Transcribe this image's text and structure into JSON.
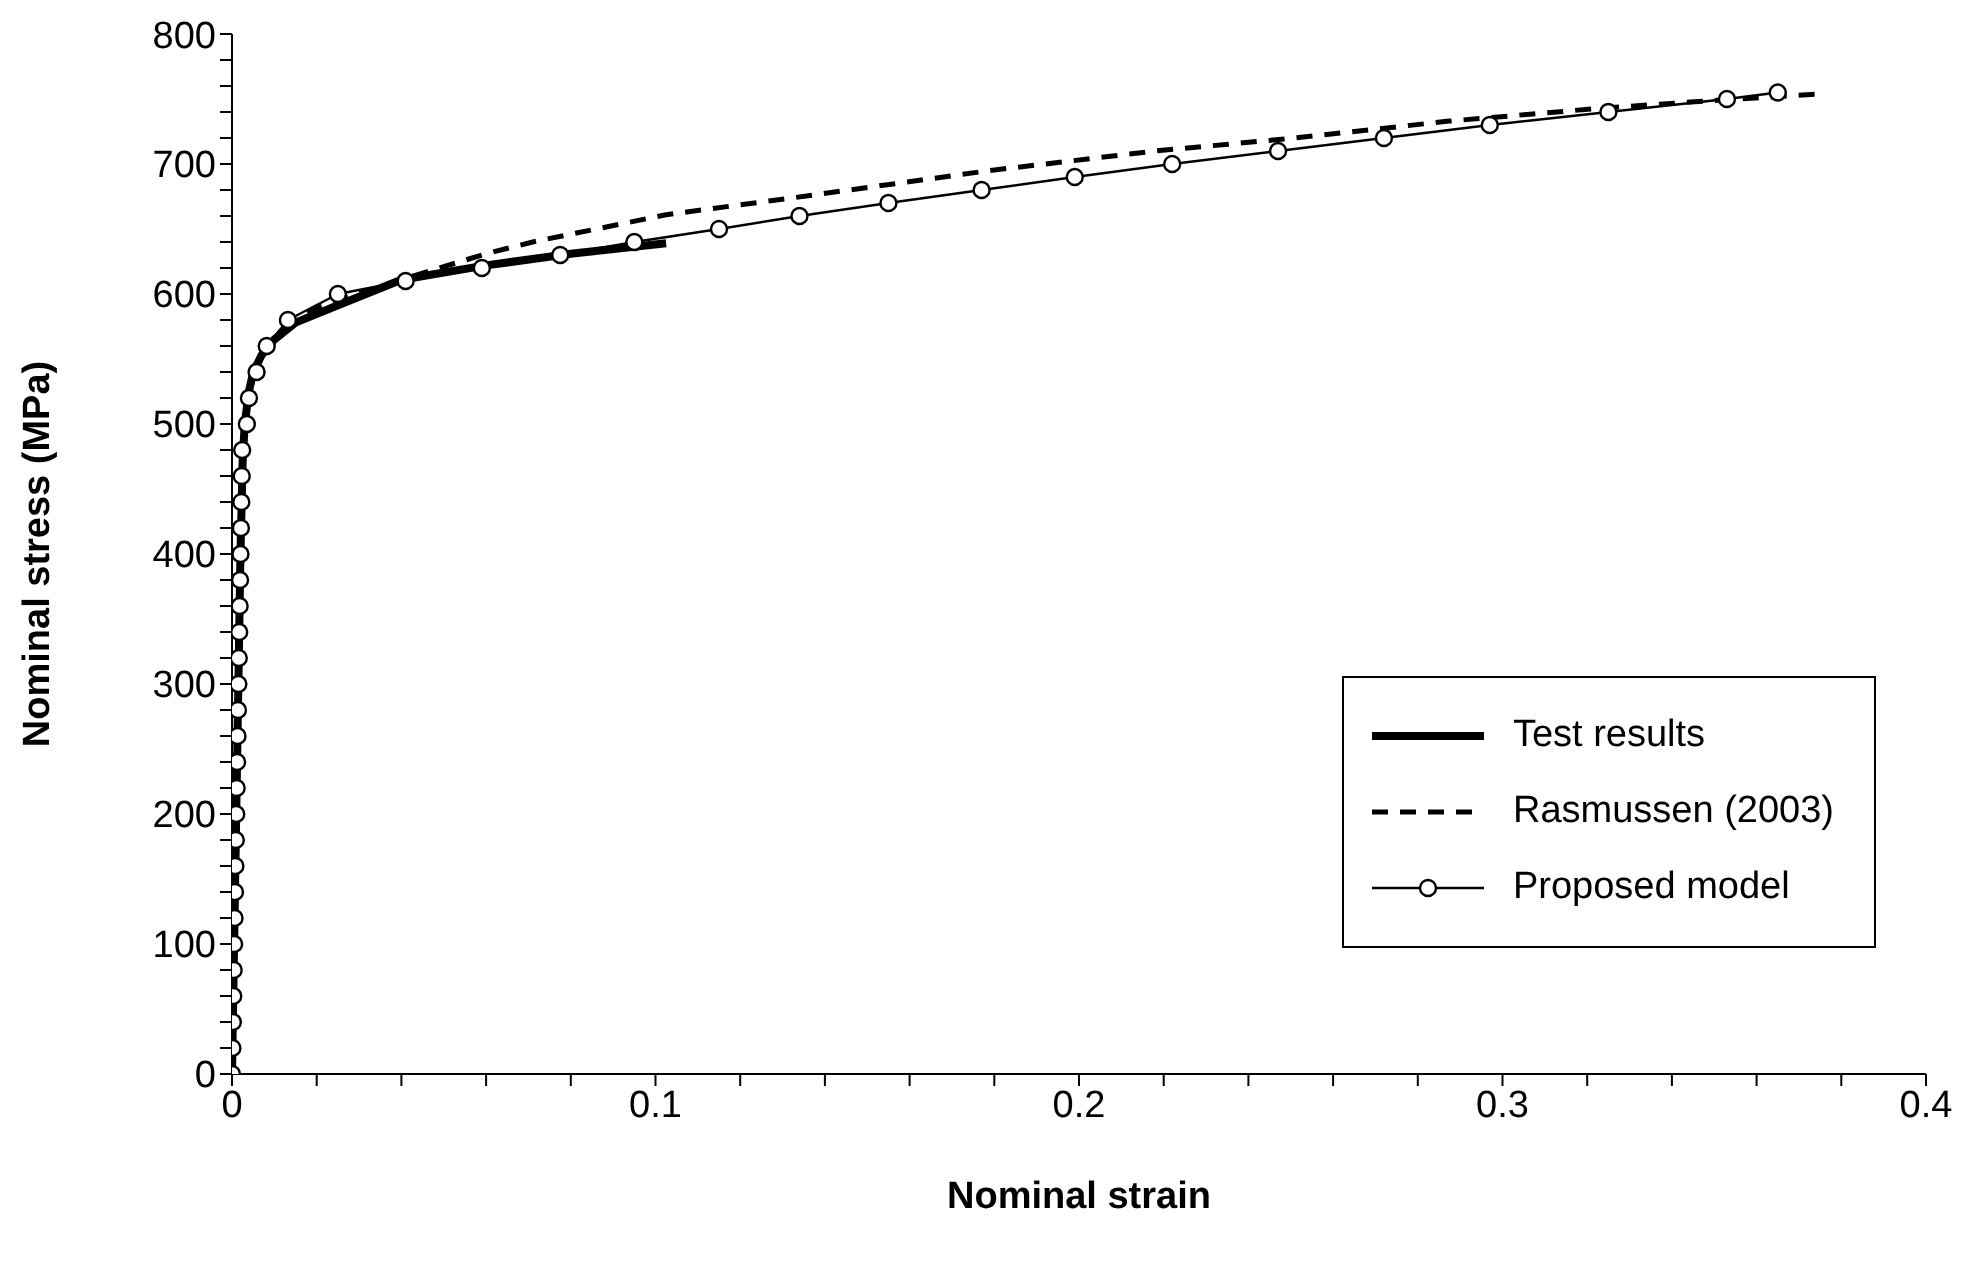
{
  "chart_data": {
    "type": "line",
    "xlabel": "Nominal strain",
    "ylabel": "Nominal stress (MPa)",
    "xlim": [
      0,
      0.4
    ],
    "ylim": [
      0,
      800
    ],
    "xticks": [
      0,
      {
        "value": 0.02,
        "label": null
      },
      {
        "value": 0.04,
        "label": null
      },
      {
        "value": 0.06,
        "label": null
      },
      {
        "value": 0.08,
        "label": null
      },
      0.1,
      {
        "value": 0.12,
        "label": null
      },
      {
        "value": 0.14,
        "label": null
      },
      {
        "value": 0.16,
        "label": null
      },
      {
        "value": 0.18,
        "label": null
      },
      0.2,
      {
        "value": 0.22,
        "label": null
      },
      {
        "value": 0.24,
        "label": null
      },
      {
        "value": 0.26,
        "label": null
      },
      {
        "value": 0.28,
        "label": null
      },
      0.3,
      {
        "value": 0.32,
        "label": null
      },
      {
        "value": 0.34,
        "label": null
      },
      {
        "value": 0.36,
        "label": null
      },
      {
        "value": 0.38,
        "label": null
      },
      0.4
    ],
    "yticks": [
      0,
      {
        "value": 20,
        "label": null
      },
      {
        "value": 40,
        "label": null
      },
      {
        "value": 60,
        "label": null
      },
      {
        "value": 80,
        "label": null
      },
      100,
      {
        "value": 120,
        "label": null
      },
      {
        "value": 140,
        "label": null
      },
      {
        "value": 160,
        "label": null
      },
      {
        "value": 180,
        "label": null
      },
      200,
      {
        "value": 220,
        "label": null
      },
      {
        "value": 240,
        "label": null
      },
      {
        "value": 260,
        "label": null
      },
      {
        "value": 280,
        "label": null
      },
      300,
      {
        "value": 320,
        "label": null
      },
      {
        "value": 340,
        "label": null
      },
      {
        "value": 360,
        "label": null
      },
      {
        "value": 380,
        "label": null
      },
      400,
      {
        "value": 420,
        "label": null
      },
      {
        "value": 440,
        "label": null
      },
      {
        "value": 460,
        "label": null
      },
      {
        "value": 480,
        "label": null
      },
      500,
      {
        "value": 520,
        "label": null
      },
      {
        "value": 540,
        "label": null
      },
      {
        "value": 560,
        "label": null
      },
      {
        "value": 580,
        "label": null
      },
      600,
      {
        "value": 620,
        "label": null
      },
      {
        "value": 640,
        "label": null
      },
      {
        "value": 660,
        "label": null
      },
      {
        "value": 680,
        "label": null
      },
      700,
      {
        "value": 720,
        "label": null
      },
      {
        "value": 740,
        "label": null
      },
      {
        "value": 760,
        "label": null
      },
      {
        "value": 780,
        "label": null
      },
      800
    ],
    "grid": false,
    "legend": "bottom right",
    "series": [
      {
        "name": "Test results",
        "color": "#000000",
        "line_style": "solid",
        "marker": "none",
        "x": [
          0,
          0.001,
          0.002,
          0.0025,
          0.003,
          0.004,
          0.005,
          0.007,
          0.01,
          0.015,
          0.024,
          0.04,
          0.06,
          0.08,
          0.1025
        ],
        "values": [
          0,
          200,
          400,
          470,
          500,
          525,
          540,
          553,
          565,
          578,
          590,
          611,
          622,
          631,
          639
        ]
      },
      {
        "name": "Rasmussen (2003)",
        "color": "#000000",
        "line_style": "dashed",
        "marker": "none",
        "x": [
          0,
          0.002,
          0.003,
          0.005,
          0.01,
          0.02,
          0.04,
          0.06,
          0.071,
          0.1025,
          0.1325,
          0.179,
          0.218,
          0.251,
          0.2874,
          0.3235,
          0.3505,
          0.3755
        ],
        "values": [
          0,
          400,
          500,
          540,
          565,
          590,
          611,
          631,
          640,
          661,
          674,
          695,
          710,
          720,
          733,
          743,
          749,
          754
        ]
      },
      {
        "name": "Proposed model",
        "color": "#000000",
        "line_style": "solid",
        "marker": "circle",
        "x": [
          0,
          0.0001,
          0.0002,
          0.0003,
          0.0004,
          0.0005,
          0.0006,
          0.0007,
          0.0008,
          0.0009,
          0.001,
          0.0011,
          0.0012,
          0.0013,
          0.0014,
          0.0015,
          0.0016,
          0.0017,
          0.0018,
          0.0019,
          0.002,
          0.0021,
          0.0022,
          0.0023,
          0.0024,
          0.0035,
          0.004,
          0.0058,
          0.0082,
          0.0132,
          0.025,
          0.041,
          0.059,
          0.0775,
          0.095,
          0.115,
          0.134,
          0.155,
          0.177,
          0.199,
          0.222,
          0.247,
          0.272,
          0.297,
          0.325,
          0.353,
          0.365
        ],
        "values": [
          0,
          20,
          40,
          60,
          80,
          100,
          120,
          140,
          160,
          180,
          200,
          220,
          240,
          260,
          280,
          300,
          320,
          340,
          360,
          380,
          400,
          420,
          440,
          460,
          480,
          500,
          520,
          540,
          560,
          580,
          600,
          610,
          620,
          630,
          640,
          650,
          660,
          670,
          680,
          690,
          700,
          710,
          720,
          730,
          740,
          750,
          755
        ]
      }
    ]
  }
}
